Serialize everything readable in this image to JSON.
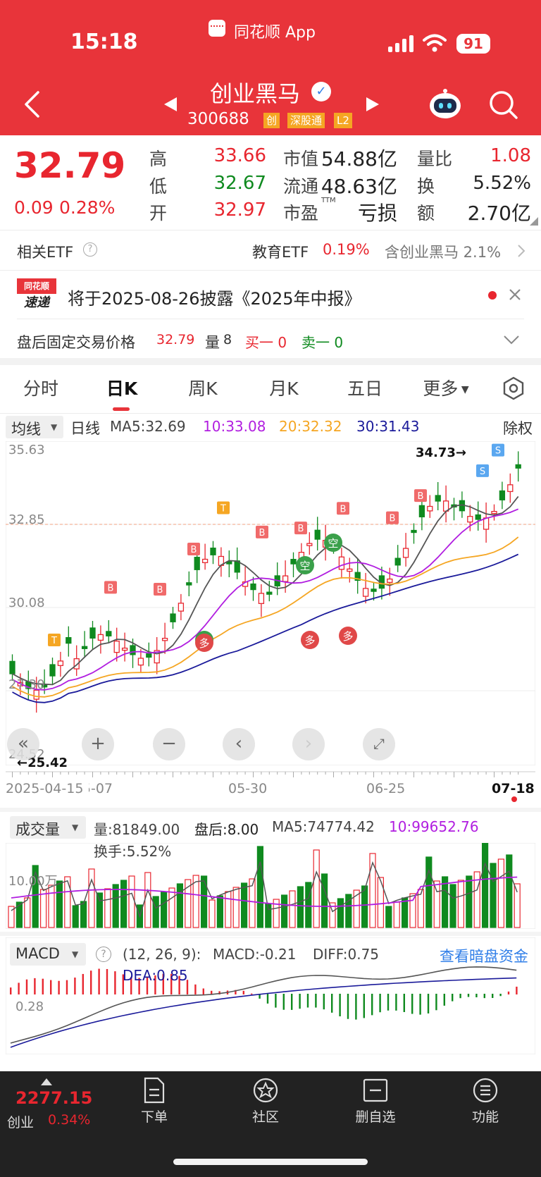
{
  "status": {
    "time": "15:18",
    "app": "同花顺 App",
    "battery": "91"
  },
  "header": {
    "name": "创业黑马",
    "code": "300688",
    "badges": [
      "创",
      "深股通",
      "L2"
    ]
  },
  "quote": {
    "price": "32.79",
    "change": "0.09",
    "pct": "0.28%",
    "high_label": "高",
    "high": "33.66",
    "low_label": "低",
    "low": "32.67",
    "open_label": "开",
    "open": "32.97",
    "mcap_label": "市值",
    "mcap": "54.88亿",
    "float_label": "流通",
    "float": "48.63亿",
    "pe_label": "市盈",
    "pe_sup": "TTM",
    "pe": "亏损",
    "vr_label": "量比",
    "vr": "1.08",
    "turn_label": "换",
    "turn": "5.52%",
    "amt_label": "额",
    "amt": "2.70亿"
  },
  "etf": {
    "label": "相关ETF",
    "name": "教育ETF",
    "pct": "0.19%",
    "hold": "含创业黑马 2.1%"
  },
  "news": {
    "logo_top": "同花顺",
    "logo_bottom": "速递",
    "text": "将于2025-08-26披露《2025年中报》"
  },
  "afterhours": {
    "label": "盘后固定交易价格",
    "price": "32.79",
    "vol_label": "量",
    "vol": "8",
    "buy": "买一 0",
    "sell": "卖一 0"
  },
  "tabs": [
    "分时",
    "日K",
    "周K",
    "月K",
    "五日",
    "更多"
  ],
  "ma_bar": {
    "select": "均线",
    "type": "日线",
    "ma5": "MA5:32.69",
    "ma10": "10:33.08",
    "ma20": "20:32.32",
    "ma30": "30:31.43",
    "adj": "除权"
  },
  "kline": {
    "y_ticks": [
      "35.63",
      "32.85",
      "30.08",
      "27.30",
      "24.52"
    ],
    "high_note": "34.73→",
    "low_note": "←25.42",
    "x_ticks": [
      "2025-04-15",
      "05-07",
      "05-30",
      "06-25",
      "07-18"
    ]
  },
  "volume": {
    "select": "成交量",
    "vol": "量:81849.00",
    "after": "盘后:8.00",
    "ma5": "MA5:74774.42",
    "ma10": "10:99652.76",
    "turnover": "换手:5.52%",
    "axis": "10.00万"
  },
  "macd": {
    "select": "MACD",
    "params": "(12, 26, 9):",
    "macd": "MACD:-0.21",
    "diff": "DIFF:0.75",
    "dea": "DEA:0.85",
    "axis": "0.28",
    "link": "查看暗盘资金"
  },
  "bottom": {
    "index": "2277.15",
    "index_name": "创业",
    "index_pct": "0.34%",
    "items": [
      "下单",
      "社区",
      "删自选",
      "功能"
    ]
  },
  "colors": {
    "brand": "#e8343a",
    "up": "#e8262f",
    "down": "#0f8a1f",
    "ma10": "#b11ee0",
    "ma20": "#f5a623",
    "ma30": "#1a1a9a"
  }
}
